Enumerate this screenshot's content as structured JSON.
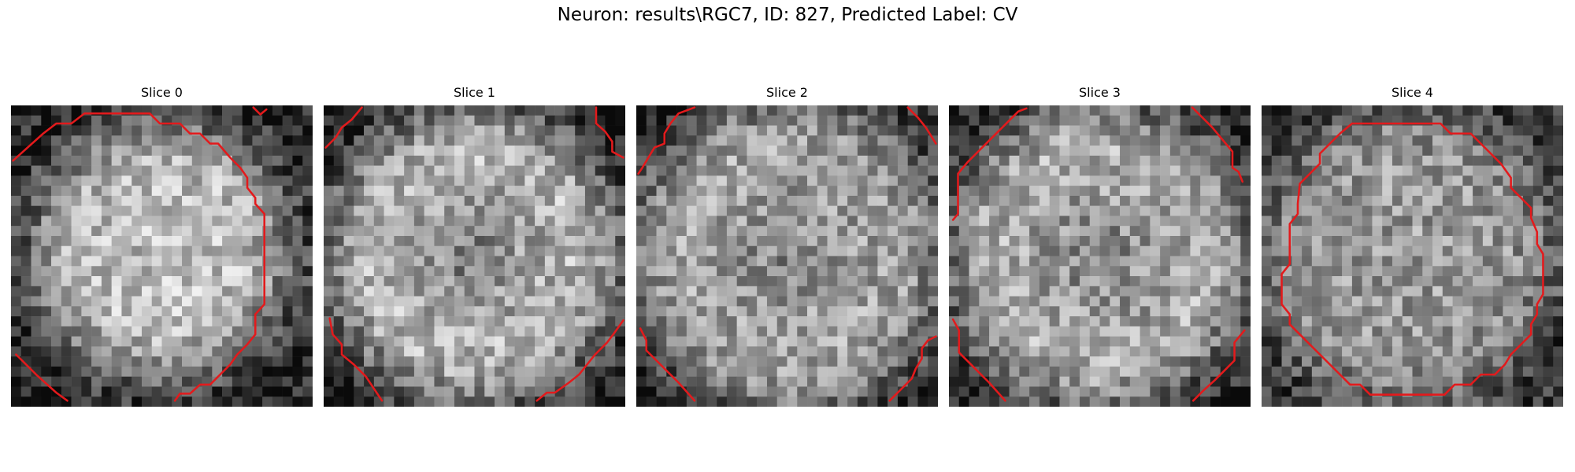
{
  "figure": {
    "title": "Neuron: results\\RGC7, ID: 827, Predicted Label: CV"
  },
  "image": {
    "grid_size": 30,
    "colormap": "gray",
    "contour_color": "#e31a1c"
  },
  "slices": [
    {
      "title": "Slice 0"
    },
    {
      "title": "Slice 1"
    },
    {
      "title": "Slice 2"
    },
    {
      "title": "Slice 3"
    },
    {
      "title": "Slice 4"
    }
  ]
}
